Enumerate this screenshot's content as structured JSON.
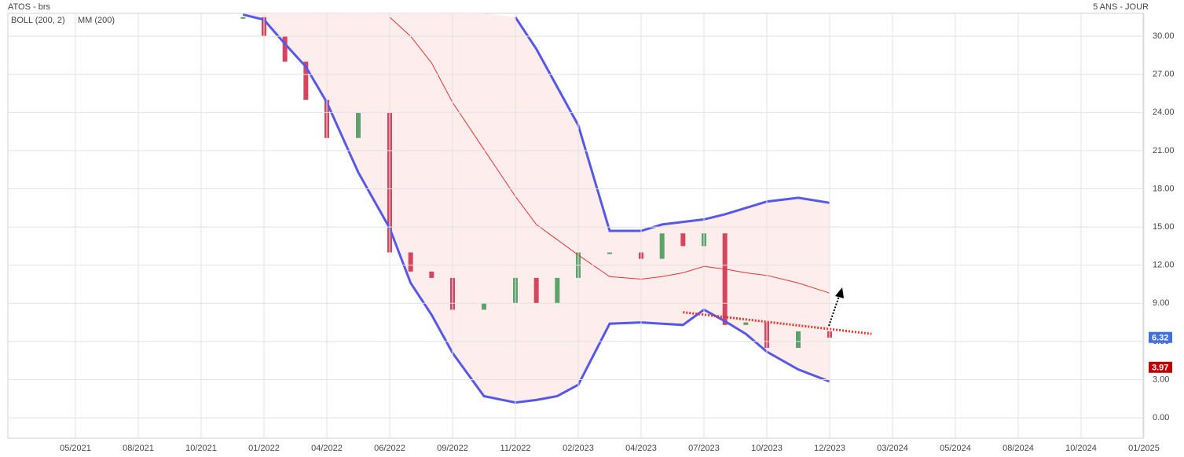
{
  "chart_data": {
    "type": "stock",
    "title": "ATOS - brs",
    "period": "5 ANS - JOUR",
    "xticks": [
      "05/2021",
      "08/2021",
      "10/2021",
      "01/2022",
      "04/2022",
      "06/2022",
      "09/2022",
      "11/2022",
      "02/2023",
      "04/2023",
      "07/2023",
      "10/2023",
      "12/2023",
      "03/2024",
      "05/2024",
      "08/2024",
      "10/2024",
      "01/2025"
    ],
    "x": [
      "12/2021",
      "01/2022",
      "02/2022",
      "03/2022",
      "04/2022",
      "05/2022",
      "06/2022",
      "07/2022",
      "08/2022",
      "09/2022",
      "10/2022",
      "11/2022",
      "12/2022",
      "01/2023",
      "02/2023",
      "03/2023",
      "04/2023",
      "05/2023",
      "06/2023",
      "07/2023",
      "08/2023",
      "09/2023",
      "10/2023",
      "11/2023",
      "12/2023"
    ],
    "close": [
      31.5,
      30,
      28,
      25,
      22,
      24,
      13,
      11.5,
      11,
      8.5,
      9,
      11,
      9,
      11,
      13,
      13,
      12.5,
      14.5,
      13.5,
      14.5,
      7.3,
      7.5,
      5.5,
      6.8,
      6.3
    ],
    "series": [
      {
        "name": "BOLL (200, 2)",
        "color": "#5558e8",
        "upper": [
          null,
          null,
          null,
          null,
          null,
          null,
          null,
          null,
          null,
          null,
          null,
          31.5,
          29,
          26,
          23,
          14.7,
          14.7,
          15.2,
          15.4,
          15.6,
          16,
          16.5,
          17,
          17.3,
          16.9
        ],
        "lower": [
          31.7,
          31.3,
          29.4,
          27.6,
          24.8,
          19.3,
          14.9,
          10.6,
          8.1,
          5.1,
          1.7,
          1.2,
          1.4,
          1.7,
          2.6,
          7.4,
          7.5,
          7.4,
          7.3,
          8.5,
          7.6,
          6.6,
          5.2,
          3.8,
          2.85
        ]
      },
      {
        "name": "MM (200)",
        "color": "#e8332f",
        "values": [
          null,
          null,
          null,
          null,
          null,
          null,
          31.5,
          30,
          27.9,
          24.8,
          21.1,
          17.4,
          15.2,
          14,
          12.8,
          11.1,
          10.9,
          11.1,
          11.4,
          11.9,
          11.7,
          11.4,
          11.2,
          10.6,
          9.8
        ]
      }
    ],
    "trendline": {
      "x": [
        "06/2023",
        "02/2024"
      ],
      "values": [
        8.3,
        6.6
      ],
      "color": "#e8332f"
    },
    "price_tags": [
      {
        "value": 6.32,
        "color": "#3f6fe0"
      },
      {
        "value": 3.97,
        "color": "#c00000"
      }
    ],
    "ylim": [
      -1.6,
      31.8
    ],
    "yticks": [
      {
        "value": 0,
        "label": "0.00"
      },
      {
        "value": 3,
        "label": "3.00"
      },
      {
        "value": 6,
        "label": "6.00"
      },
      {
        "value": 9,
        "label": "9.00"
      },
      {
        "value": 12,
        "label": "12.00"
      },
      {
        "value": 15,
        "label": "15.00"
      },
      {
        "value": 18,
        "label": "18.00"
      },
      {
        "value": 21,
        "label": "21.00"
      },
      {
        "value": 24,
        "label": "24.00"
      },
      {
        "value": 27,
        "label": "27.00"
      },
      {
        "value": 30,
        "label": "30.00"
      }
    ],
    "grid": true
  }
}
